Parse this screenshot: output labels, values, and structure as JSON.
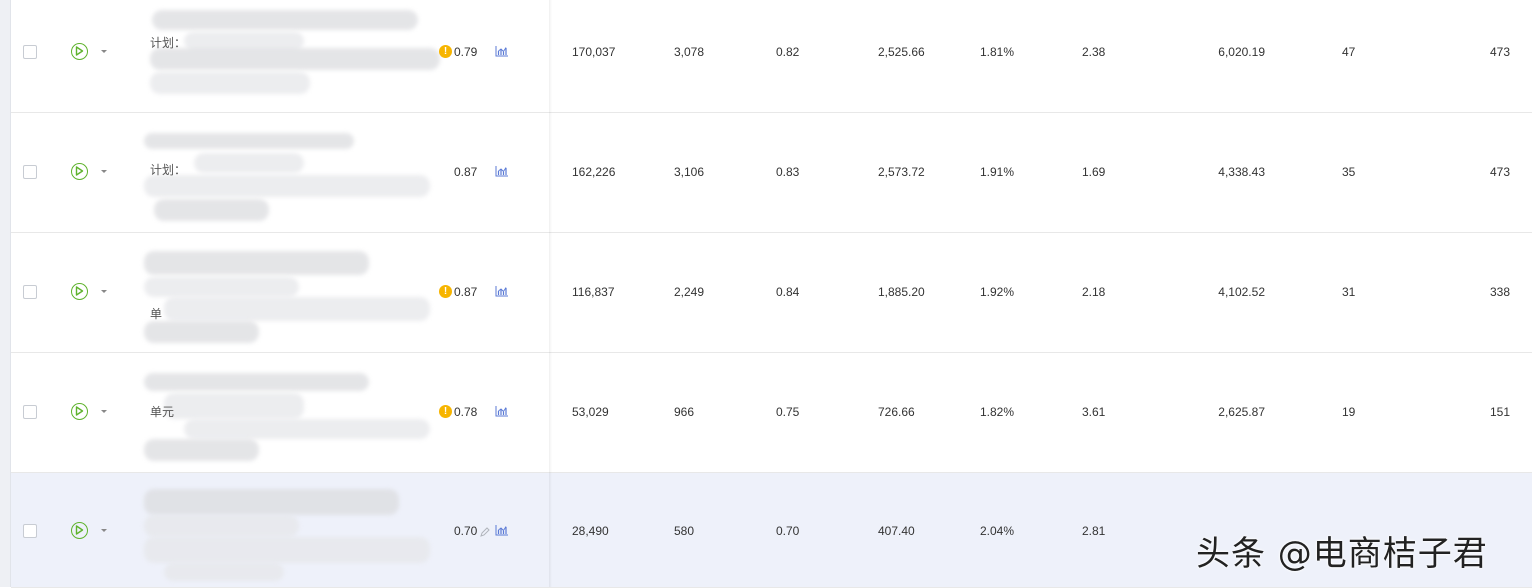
{
  "rows": [
    {
      "name_prefix": "计划：",
      "name_prefix2": "",
      "warning": true,
      "score": "0.79",
      "editable": false,
      "cells": [
        "170,037",
        "3,078",
        "0.82",
        "2,525.66",
        "1.81%",
        "2.38",
        "6,020.19",
        "47",
        "473"
      ]
    },
    {
      "name_prefix": "计划：",
      "name_prefix2": "",
      "warning": false,
      "score": "0.87",
      "editable": false,
      "cells": [
        "162,226",
        "3,106",
        "0.83",
        "2,573.72",
        "1.91%",
        "1.69",
        "4,338.43",
        "35",
        "473"
      ]
    },
    {
      "name_prefix": "",
      "name_prefix2": "单",
      "warning": true,
      "score": "0.87",
      "editable": false,
      "cells": [
        "116,837",
        "2,249",
        "0.84",
        "1,885.20",
        "1.92%",
        "2.18",
        "4,102.52",
        "31",
        "338"
      ]
    },
    {
      "name_prefix": "",
      "name_prefix2": "单元",
      "warning": true,
      "score": "0.78",
      "editable": false,
      "cells": [
        "53,029",
        "966",
        "0.75",
        "726.66",
        "1.82%",
        "3.61",
        "2,625.87",
        "19",
        "151"
      ]
    },
    {
      "name_prefix": "",
      "name_prefix2": "",
      "warning": false,
      "score": "0.70",
      "editable": true,
      "cells": [
        "28,490",
        "580",
        "0.70",
        "407.40",
        "2.04%",
        "2.81",
        "",
        "",
        ""
      ]
    }
  ],
  "watermark": "头条 @电商桔子君",
  "colors": {
    "play_green": "#5fb32d",
    "warning_orange": "#f7b500",
    "chart_blue": "#5b7ad6",
    "selected_row": "#eef1fa"
  },
  "icons": {
    "status": "play-circle-icon",
    "dropdown": "caret-down-icon",
    "warning": "exclamation-icon",
    "trend": "bar-chart-icon",
    "edit": "pencil-icon"
  }
}
